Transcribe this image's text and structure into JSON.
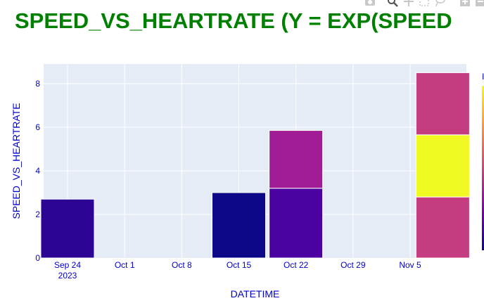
{
  "chart_data": {
    "type": "bar",
    "barmode": "stack",
    "title": "SPEED_VS_HEARTRATE (Y = EXP(SPEED",
    "xlabel": "DATETIME",
    "ylabel": "SPEED_VS_HEARTRATE",
    "x_ticks": [
      "Sep 24",
      "Oct 1",
      "Oct 8",
      "Oct 15",
      "Oct 22",
      "Oct 29",
      "Nov 5"
    ],
    "x_tick_year": "2023",
    "y_ticks": [
      "0",
      "2",
      "4",
      "6",
      "8"
    ],
    "ylim": [
      0,
      8.9
    ],
    "grid": true,
    "colorscale": "plasma",
    "colorbar_visible_fragment": "I",
    "bars": [
      {
        "x": "Sep 24",
        "segments": [
          {
            "value": 2.7,
            "color": "#2c0594"
          }
        ]
      },
      {
        "x": "Oct 15",
        "segments": [
          {
            "value": 3.0,
            "color": "#0d0887"
          }
        ]
      },
      {
        "x": "Oct 22",
        "segments": [
          {
            "value": 3.2,
            "color": "#4c02a1"
          },
          {
            "value": 2.65,
            "color": "#a11c95"
          }
        ]
      },
      {
        "x": "Nov 9",
        "segments": [
          {
            "value": 2.8,
            "color": "#c33d80"
          },
          {
            "value": 2.85,
            "color": "#f0f921"
          },
          {
            "value": 2.85,
            "color": "#c33d80"
          }
        ]
      }
    ]
  },
  "colors": {
    "title": "#008000",
    "text": "#0000cc",
    "plot_background": "#e5ecf6",
    "grid": "#ffffff",
    "modebar_icon": "#c8c8c8"
  },
  "modebar": {
    "icons": [
      "camera-icon",
      "zoom-icon",
      "pan-icon",
      "box-select-icon",
      "lasso-icon",
      "zoom-in-icon",
      "zoom-out-icon"
    ]
  }
}
